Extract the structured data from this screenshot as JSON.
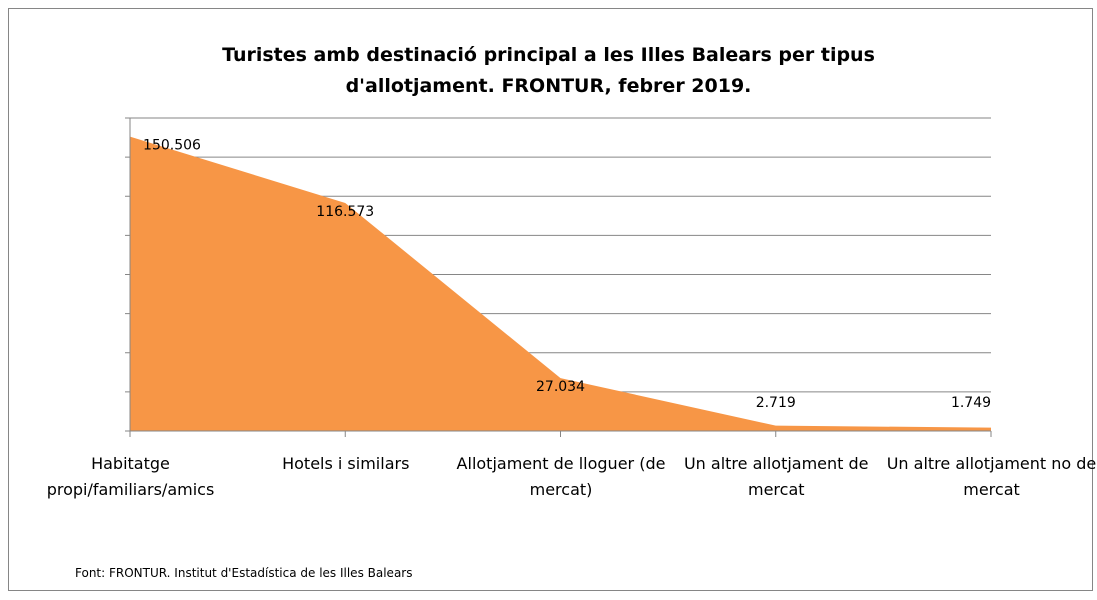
{
  "chart_data": {
    "type": "area",
    "title": "Turistes amb destinació principal a les Illes Balears per tipus d'allotjament. FRONTUR, febrer 2019.",
    "categories": [
      "Habitatge propi/familiars/amics",
      "Hotels i similars",
      "Allotjament de lloguer (de mercat)",
      "Un altre allotjament de mercat",
      "Un altre allotjament no de mercat"
    ],
    "values": [
      150506,
      116573,
      27034,
      2719,
      1749
    ],
    "value_labels": [
      "150.506",
      "116.573",
      "27.034",
      "2.719",
      "1.749"
    ],
    "color": "#f79646",
    "ylim": [
      0,
      160000
    ],
    "yticks": [
      0,
      20000,
      40000,
      60000,
      80000,
      100000,
      120000,
      140000,
      160000
    ],
    "grid": true,
    "source": "Font: FRONTUR.  Institut d'Estadística de les Illes Balears"
  }
}
